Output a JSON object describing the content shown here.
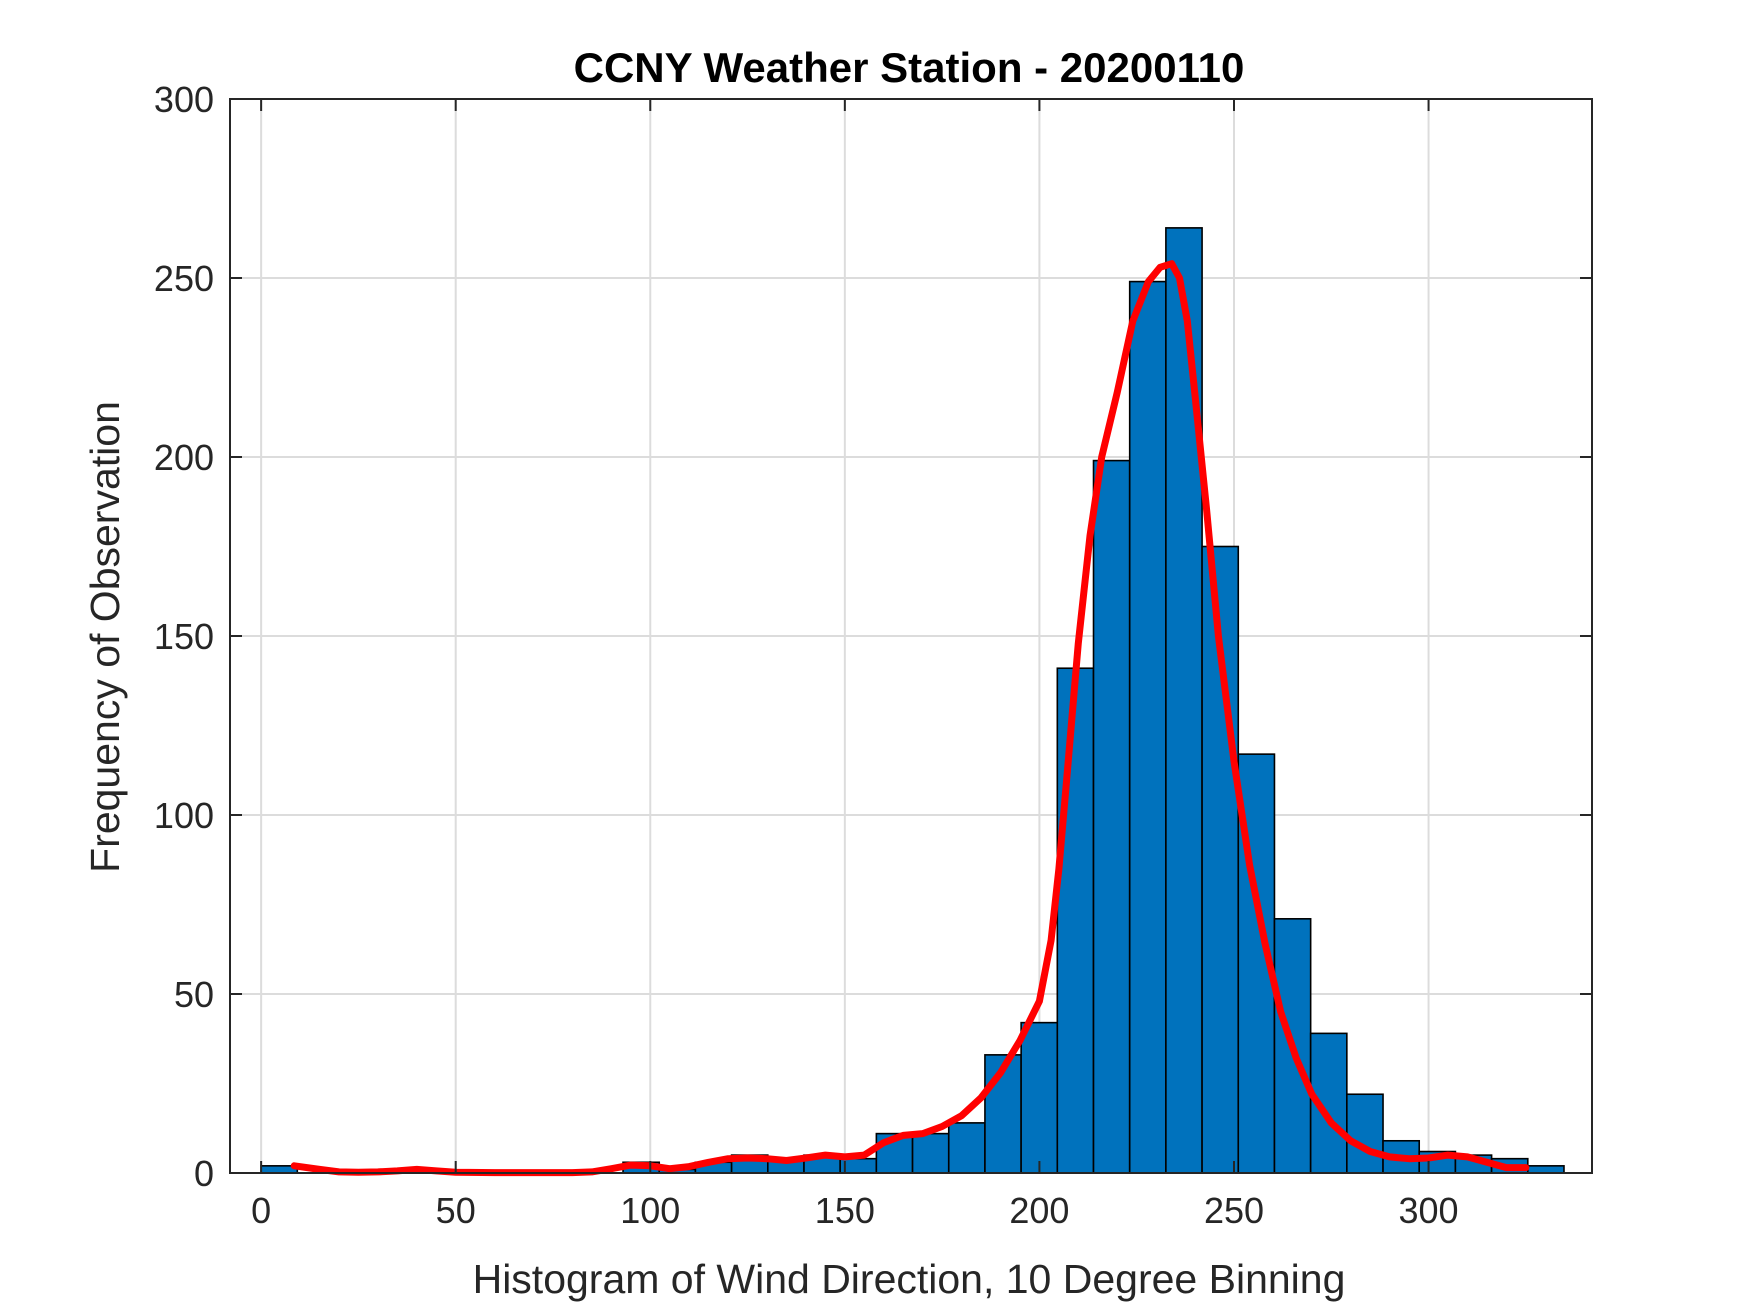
{
  "chart_data": {
    "type": "bar",
    "title": "CCNY Weather Station - 20200110",
    "xlabel": "Histogram of Wind Direction, 10 Degree Binning",
    "ylabel": "Frequency of Observation",
    "xlim": [
      -8,
      342
    ],
    "ylim": [
      0,
      300
    ],
    "xticks": [
      0,
      50,
      100,
      150,
      200,
      250,
      300
    ],
    "yticks": [
      0,
      50,
      100,
      150,
      200,
      250,
      300
    ],
    "grid": true,
    "bar_color": "#0072BD",
    "bar_edge_color": "#000000",
    "curve_color": "#FF0000",
    "bin_width": 9.3,
    "bins": [
      {
        "start": 0,
        "value": 2
      },
      {
        "start": 93,
        "value": 3
      },
      {
        "start": 102.3,
        "value": 1
      },
      {
        "start": 111.6,
        "value": 3
      },
      {
        "start": 120.9,
        "value": 5
      },
      {
        "start": 130.2,
        "value": 4
      },
      {
        "start": 139.5,
        "value": 5
      },
      {
        "start": 148.8,
        "value": 4
      },
      {
        "start": 158.1,
        "value": 11
      },
      {
        "start": 167.4,
        "value": 11
      },
      {
        "start": 176.7,
        "value": 14
      },
      {
        "start": 186,
        "value": 33
      },
      {
        "start": 195.3,
        "value": 42
      },
      {
        "start": 204.6,
        "value": 141
      },
      {
        "start": 213.9,
        "value": 199
      },
      {
        "start": 223.2,
        "value": 249
      },
      {
        "start": 232.5,
        "value": 264
      },
      {
        "start": 241.8,
        "value": 175
      },
      {
        "start": 251.1,
        "value": 117
      },
      {
        "start": 260.4,
        "value": 71
      },
      {
        "start": 269.7,
        "value": 39
      },
      {
        "start": 279,
        "value": 22
      },
      {
        "start": 288.3,
        "value": 9
      },
      {
        "start": 297.6,
        "value": 6
      },
      {
        "start": 306.9,
        "value": 5
      },
      {
        "start": 316.2,
        "value": 4
      },
      {
        "start": 325.5,
        "value": 2
      }
    ],
    "fit_curve": {
      "x": [
        8.5,
        15,
        20,
        25,
        30,
        35,
        40,
        45,
        50,
        60,
        70,
        80,
        85,
        90,
        95,
        100,
        105,
        110,
        115,
        120,
        125,
        130,
        135,
        140,
        145,
        150,
        155,
        160,
        165,
        170,
        175,
        180,
        185,
        190,
        195,
        200,
        203,
        205,
        207,
        210,
        213,
        216,
        220,
        224,
        228,
        231,
        234,
        236,
        238,
        240,
        243,
        246,
        250,
        254,
        258,
        262,
        266,
        270,
        275,
        280,
        285,
        290,
        295,
        300,
        305,
        310,
        315,
        320,
        325
      ],
      "y": [
        2,
        1,
        0.3,
        0.2,
        0.3,
        0.6,
        1,
        0.6,
        0.2,
        0.1,
        0.1,
        0.1,
        0.3,
        1.2,
        2.2,
        2,
        1.2,
        1.8,
        3,
        4,
        4.2,
        4,
        3.5,
        4.2,
        5,
        4.5,
        5,
        8.5,
        10.5,
        11,
        13,
        16,
        21,
        28,
        37,
        48,
        65,
        85,
        110,
        148,
        178,
        200,
        218,
        238,
        249,
        253,
        254,
        250,
        238,
        217,
        185,
        150,
        115,
        86,
        64,
        45,
        32,
        22,
        14,
        9,
        6,
        4.5,
        4,
        4.2,
        5,
        4.5,
        3,
        1.5,
        1.5
      ]
    }
  }
}
